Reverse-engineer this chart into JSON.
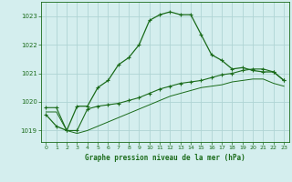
{
  "title": "Graphe pression niveau de la mer (hPa)",
  "background_color": "#d4eeee",
  "grid_color": "#b0d4d4",
  "line_color": "#1a6b1a",
  "xlim": [
    -0.5,
    23.5
  ],
  "ylim": [
    1018.6,
    1023.5
  ],
  "yticks": [
    1019,
    1020,
    1021,
    1022,
    1023
  ],
  "xticks": [
    0,
    1,
    2,
    3,
    4,
    5,
    6,
    7,
    8,
    9,
    10,
    11,
    12,
    13,
    14,
    15,
    16,
    17,
    18,
    19,
    20,
    21,
    22,
    23
  ],
  "series1_x": [
    0,
    1,
    2,
    3,
    4,
    5,
    6,
    7,
    8,
    9,
    10,
    11,
    12,
    13,
    14,
    15,
    16,
    17,
    18,
    19,
    20,
    21,
    22,
    23
  ],
  "series1_y": [
    1019.55,
    1019.15,
    1019.0,
    1019.85,
    1019.85,
    1020.5,
    1020.75,
    1021.3,
    1021.55,
    1022.0,
    1022.85,
    1023.05,
    1023.15,
    1023.05,
    1023.05,
    1022.35,
    1021.65,
    1021.45,
    1021.15,
    1021.2,
    1021.1,
    1021.05,
    1021.05,
    1020.75
  ],
  "series2_x": [
    0,
    1,
    2,
    3,
    4,
    5,
    6,
    7,
    8,
    9,
    10,
    11,
    12,
    13,
    14,
    15,
    16,
    17,
    18,
    19,
    20,
    21,
    22,
    23
  ],
  "series2_y": [
    1019.8,
    1019.8,
    1019.0,
    1019.0,
    1019.75,
    1019.85,
    1019.9,
    1019.95,
    1020.05,
    1020.15,
    1020.3,
    1020.45,
    1020.55,
    1020.65,
    1020.7,
    1020.75,
    1020.85,
    1020.95,
    1021.0,
    1021.1,
    1021.15,
    1021.15,
    1021.05,
    1020.75
  ],
  "series3_x": [
    0,
    1,
    2,
    3,
    4,
    5,
    6,
    7,
    8,
    9,
    10,
    11,
    12,
    13,
    14,
    15,
    16,
    17,
    18,
    19,
    20,
    21,
    22,
    23
  ],
  "series3_y": [
    1019.65,
    1019.65,
    1019.0,
    1018.9,
    1019.0,
    1019.15,
    1019.3,
    1019.45,
    1019.6,
    1019.75,
    1019.9,
    1020.05,
    1020.2,
    1020.3,
    1020.4,
    1020.5,
    1020.55,
    1020.6,
    1020.7,
    1020.75,
    1020.8,
    1020.8,
    1020.65,
    1020.55
  ]
}
